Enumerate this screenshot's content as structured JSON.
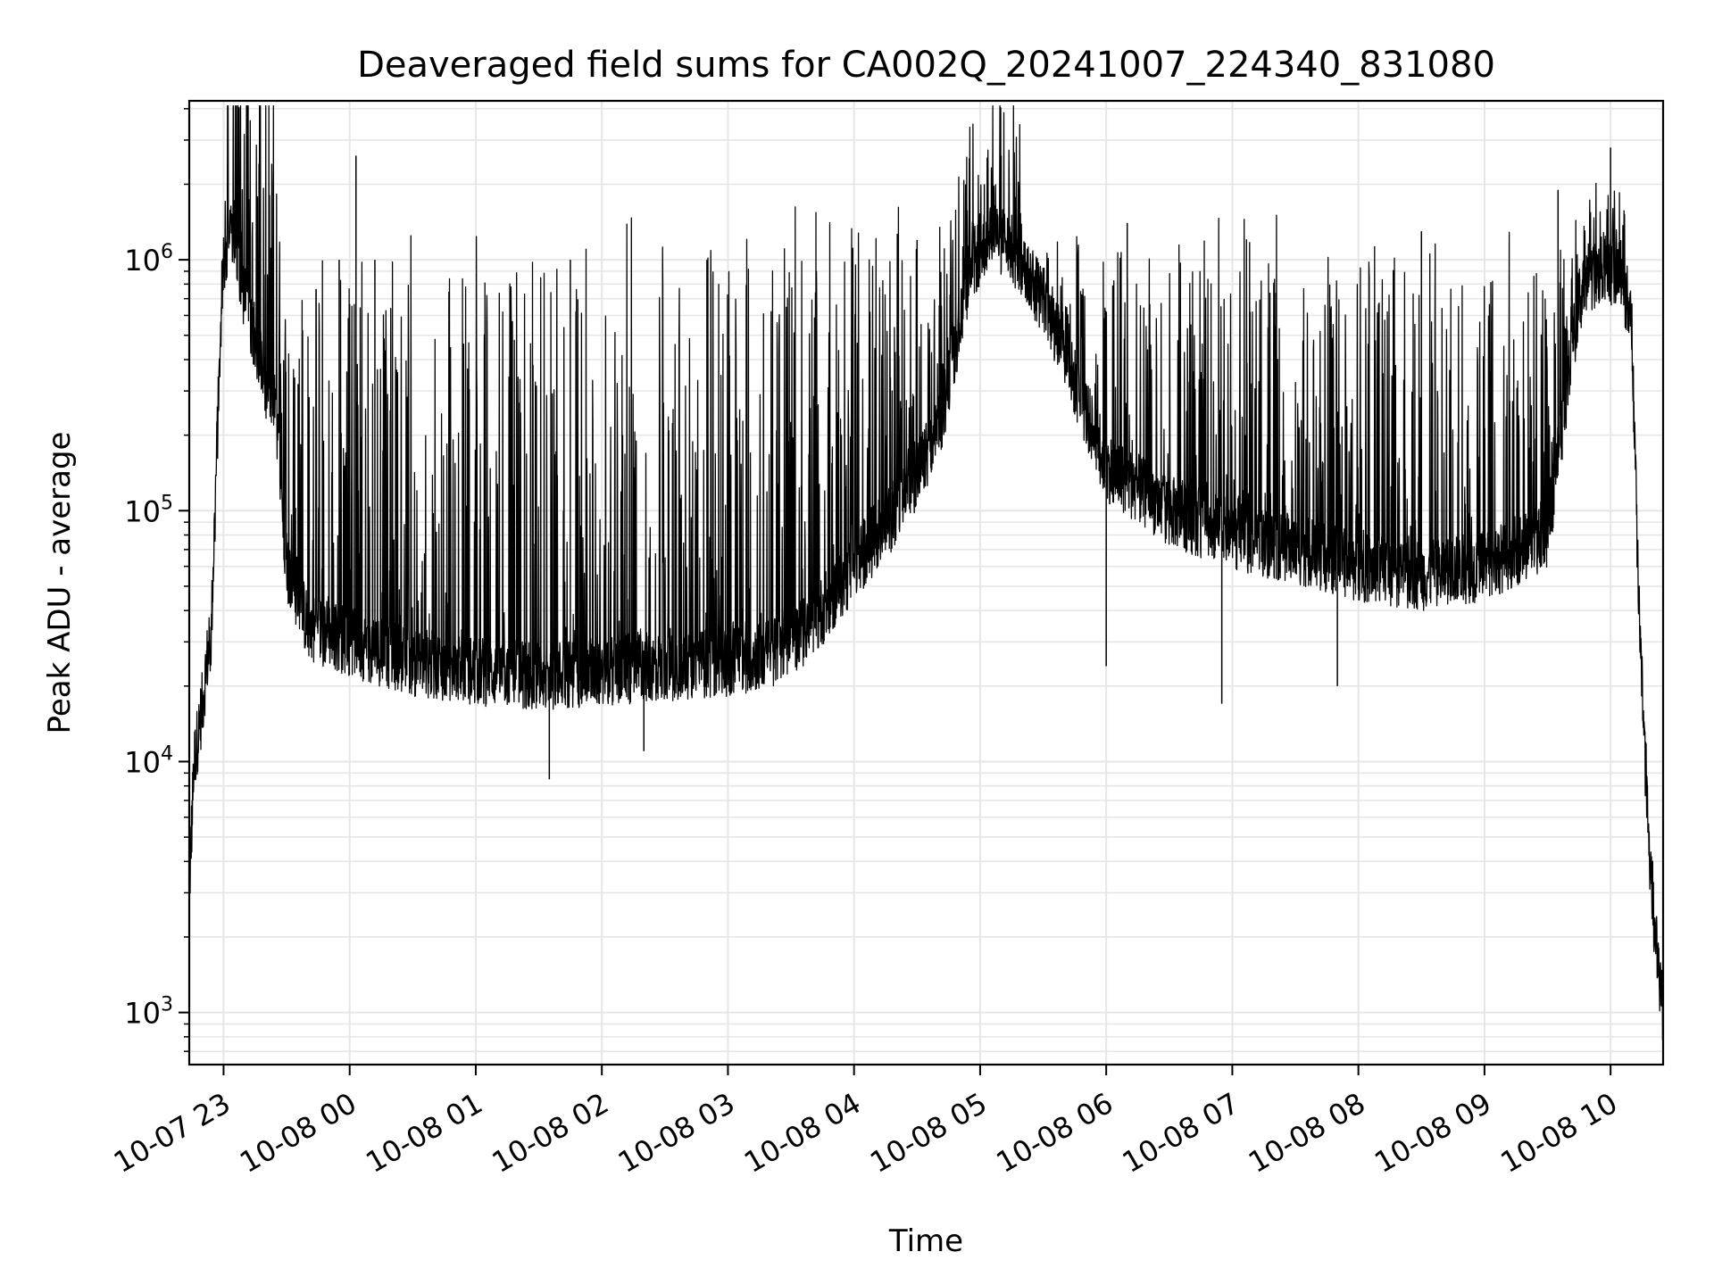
{
  "chart_data": {
    "type": "line",
    "title": "Deaveraged field sums for CA002Q_20241007_224340_831080",
    "xlabel": "Time",
    "ylabel": "Peak ADU - average",
    "yscale": "log",
    "ylim": [
      620,
      4300000
    ],
    "xlim": [
      "2024-10-07 22:43:40",
      "2024-10-08 10:25:00"
    ],
    "grid": true,
    "color": "#000000",
    "x_ticks": [
      {
        "time": "2024-10-07 23:00",
        "label": "10-07 23"
      },
      {
        "time": "2024-10-08 00:00",
        "label": "10-08 00"
      },
      {
        "time": "2024-10-08 01:00",
        "label": "10-08 01"
      },
      {
        "time": "2024-10-08 02:00",
        "label": "10-08 02"
      },
      {
        "time": "2024-10-08 03:00",
        "label": "10-08 03"
      },
      {
        "time": "2024-10-08 04:00",
        "label": "10-08 04"
      },
      {
        "time": "2024-10-08 05:00",
        "label": "10-08 05"
      },
      {
        "time": "2024-10-08 06:00",
        "label": "10-08 06"
      },
      {
        "time": "2024-10-08 07:00",
        "label": "10-08 07"
      },
      {
        "time": "2024-10-08 08:00",
        "label": "10-08 08"
      },
      {
        "time": "2024-10-08 09:00",
        "label": "10-08 09"
      },
      {
        "time": "2024-10-08 10:00",
        "label": "10-08 10"
      }
    ],
    "y_ticks": [
      {
        "value": 1000,
        "base": "10",
        "exp": "3"
      },
      {
        "value": 10000,
        "base": "10",
        "exp": "4"
      },
      {
        "value": 100000,
        "base": "10",
        "exp": "5"
      },
      {
        "value": 1000000,
        "base": "10",
        "exp": "6"
      }
    ],
    "series": [
      {
        "baseline": {
          "x": [
            "2024-10-07 22:43:40",
            "2024-10-07 22:46",
            "2024-10-07 22:50",
            "2024-10-07 22:52",
            "2024-10-07 22:54",
            "2024-10-07 22:57",
            "2024-10-07 23:00",
            "2024-10-07 23:05",
            "2024-10-07 23:10",
            "2024-10-07 23:15",
            "2024-10-07 23:20",
            "2024-10-07 23:25",
            "2024-10-07 23:30",
            "2024-10-07 23:40",
            "2024-10-08 00:00",
            "2024-10-08 00:30",
            "2024-10-08 01:00",
            "2024-10-08 01:30",
            "2024-10-08 02:00",
            "2024-10-08 02:30",
            "2024-10-08 03:00",
            "2024-10-08 03:20",
            "2024-10-08 03:40",
            "2024-10-08 04:00",
            "2024-10-08 04:20",
            "2024-10-08 04:40",
            "2024-10-08 04:55",
            "2024-10-08 05:05",
            "2024-10-08 05:15",
            "2024-10-08 05:30",
            "2024-10-08 06:00",
            "2024-10-08 06:30",
            "2024-10-08 07:00",
            "2024-10-08 07:30",
            "2024-10-08 08:00",
            "2024-10-08 08:30",
            "2024-10-08 09:00",
            "2024-10-08 09:30",
            "2024-10-08 09:45",
            "2024-10-08 09:55",
            "2024-10-08 10:05",
            "2024-10-08 10:10",
            "2024-10-08 10:14",
            "2024-10-08 10:17",
            "2024-10-08 10:20",
            "2024-10-08 10:22",
            "2024-10-08 10:25"
          ],
          "y": [
            3000,
            10000,
            17000,
            25000,
            30000,
            200000,
            1000000,
            1300000,
            700000,
            500000,
            300000,
            250000,
            60000,
            35000,
            30000,
            25000,
            23000,
            22000,
            23000,
            24000,
            25000,
            27000,
            35000,
            60000,
            100000,
            200000,
            900000,
            1300000,
            1100000,
            700000,
            150000,
            100000,
            80000,
            70000,
            60000,
            55000,
            60000,
            80000,
            700000,
            900000,
            900000,
            500000,
            30000,
            8000,
            2500,
            1800,
            1000
          ]
        },
        "spikes": {
          "x": [
            "2024-10-07 23:55",
            "2024-10-08 00:03",
            "2024-10-08 00:12",
            "2024-10-08 01:45",
            "2024-10-08 02:50",
            "2024-10-08 04:30",
            "2024-10-08 05:02",
            "2024-10-08 05:10",
            "2024-10-08 06:10",
            "2024-10-08 08:30",
            "2024-10-08 09:35",
            "2024-10-08 10:00"
          ],
          "y": [
            1000000,
            2600000,
            1000000,
            1000000,
            1000000,
            1200000,
            2000000,
            2600000,
            1400000,
            1300000,
            1900000,
            2800000
          ]
        },
        "dips": {
          "x": [
            "2024-10-08 01:35",
            "2024-10-08 02:20",
            "2024-10-08 06:00",
            "2024-10-08 06:55",
            "2024-10-08 07:50"
          ],
          "y": [
            8500,
            11000,
            24000,
            17000,
            20000
          ]
        }
      }
    ]
  }
}
